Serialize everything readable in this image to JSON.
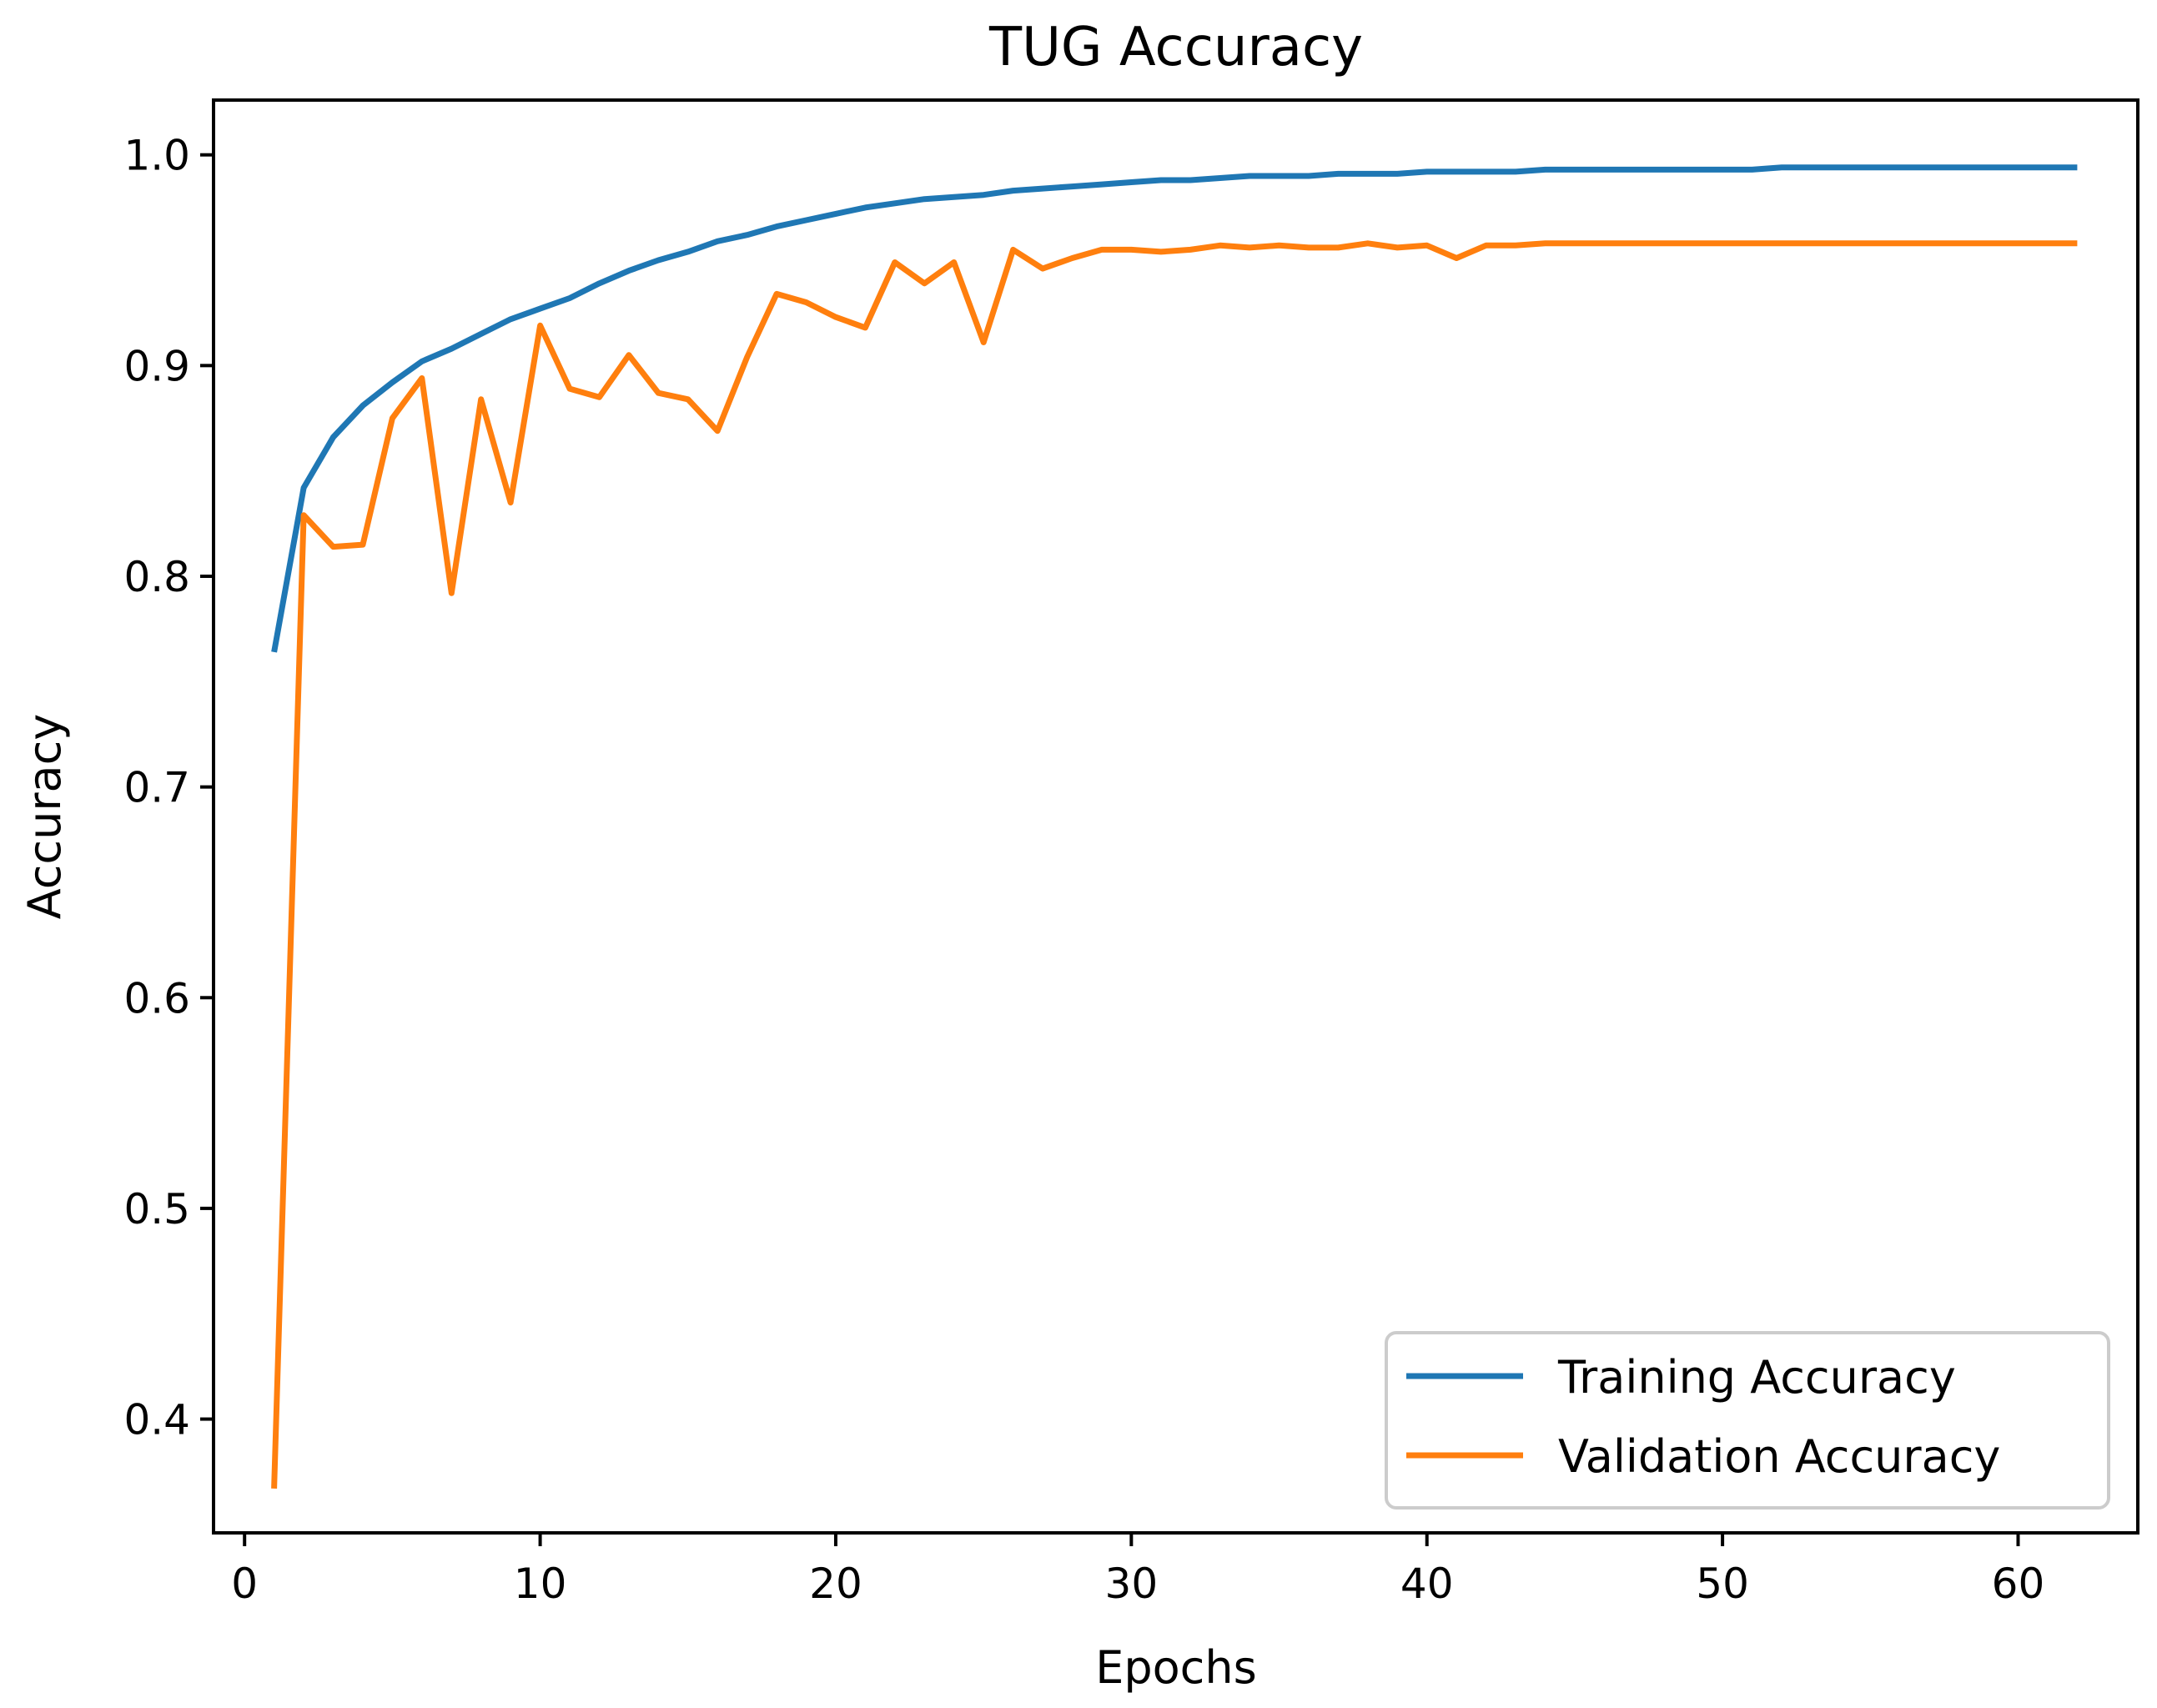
{
  "chart_data": {
    "type": "line",
    "title": "TUG Accuracy",
    "xlabel": "Epochs",
    "ylabel": "Accuracy",
    "xlim": [
      -1.05,
      64.05
    ],
    "ylim": [
      0.346,
      1.026
    ],
    "xticks": [
      0,
      10,
      20,
      30,
      40,
      50,
      60
    ],
    "yticks": [
      0.4,
      0.5,
      0.6,
      0.7,
      0.8,
      0.9,
      1.0
    ],
    "xtick_labels": [
      "0",
      "10",
      "20",
      "30",
      "40",
      "50",
      "60"
    ],
    "ytick_labels": [
      "0.4",
      "0.5",
      "0.6",
      "0.7",
      "0.8",
      "0.9",
      "1.0"
    ],
    "grid": false,
    "legend_position": "lower-right",
    "x": [
      1,
      2,
      3,
      4,
      5,
      6,
      7,
      8,
      9,
      10,
      11,
      12,
      13,
      14,
      15,
      16,
      17,
      18,
      19,
      20,
      21,
      22,
      23,
      24,
      25,
      26,
      27,
      28,
      29,
      30,
      31,
      32,
      33,
      34,
      35,
      36,
      37,
      38,
      39,
      40,
      41,
      42,
      43,
      44,
      45,
      46,
      47,
      48,
      49,
      50,
      51,
      52,
      53,
      54,
      55,
      56,
      57,
      58,
      59,
      60,
      61,
      62
    ],
    "series": [
      {
        "name": "Training Accuracy",
        "color": "#1f77b4",
        "values": [
          0.764,
          0.842,
          0.866,
          0.881,
          0.892,
          0.902,
          0.908,
          0.915,
          0.922,
          0.927,
          0.932,
          0.939,
          0.945,
          0.95,
          0.954,
          0.959,
          0.962,
          0.966,
          0.969,
          0.972,
          0.975,
          0.977,
          0.979,
          0.98,
          0.981,
          0.983,
          0.984,
          0.985,
          0.986,
          0.987,
          0.988,
          0.988,
          0.989,
          0.99,
          0.99,
          0.99,
          0.991,
          0.991,
          0.991,
          0.992,
          0.992,
          0.992,
          0.992,
          0.993,
          0.993,
          0.993,
          0.993,
          0.993,
          0.993,
          0.993,
          0.993,
          0.994,
          0.994,
          0.994,
          0.994,
          0.994,
          0.994,
          0.994,
          0.994,
          0.994,
          0.994,
          0.994
        ]
      },
      {
        "name": "Validation Accuracy",
        "color": "#ff7f0e",
        "values": [
          0.367,
          0.829,
          0.814,
          0.815,
          0.875,
          0.894,
          0.792,
          0.884,
          0.835,
          0.919,
          0.889,
          0.885,
          0.905,
          0.887,
          0.884,
          0.869,
          0.904,
          0.934,
          0.93,
          0.923,
          0.918,
          0.949,
          0.939,
          0.949,
          0.911,
          0.955,
          0.946,
          0.951,
          0.955,
          0.955,
          0.954,
          0.955,
          0.957,
          0.956,
          0.957,
          0.956,
          0.956,
          0.958,
          0.956,
          0.957,
          0.951,
          0.957,
          0.957,
          0.958,
          0.958,
          0.958,
          0.958,
          0.958,
          0.958,
          0.958,
          0.958,
          0.958,
          0.958,
          0.958,
          0.958,
          0.958,
          0.958,
          0.958,
          0.958,
          0.958,
          0.958,
          0.958
        ]
      }
    ]
  }
}
